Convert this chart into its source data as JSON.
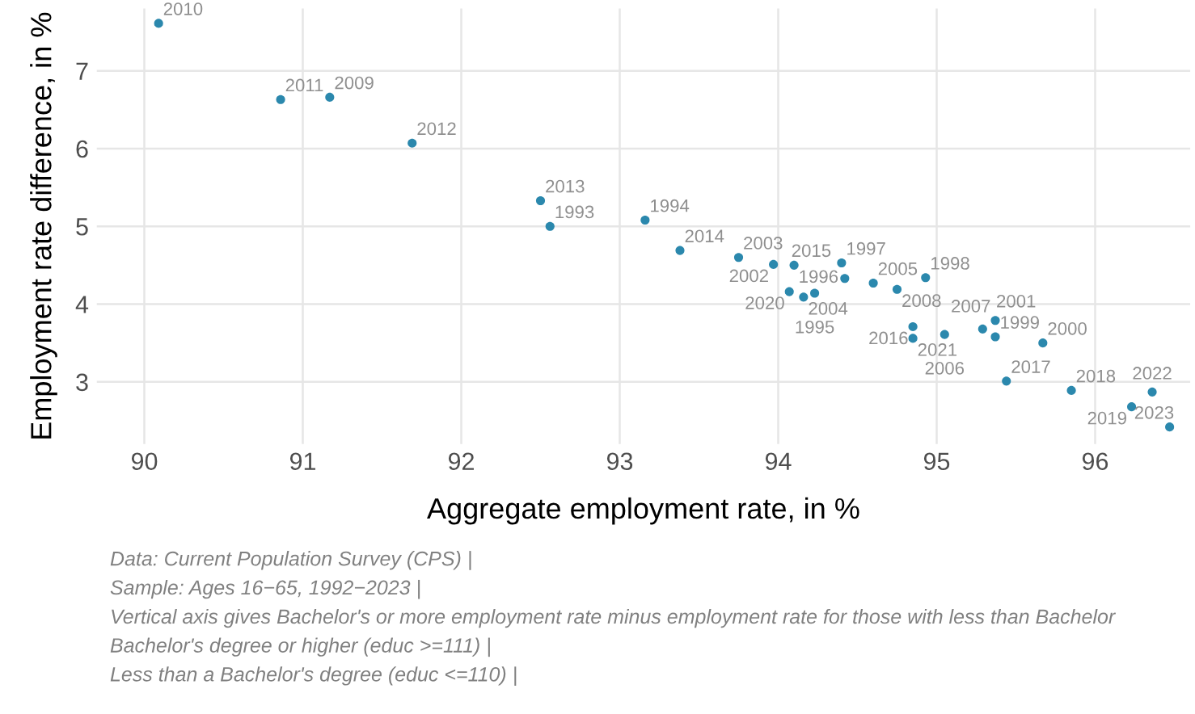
{
  "chart_data": {
    "type": "scatter",
    "xlabel": "Aggregate employment rate, in %",
    "ylabel": "Employment rate difference, in %",
    "x": [
      90.09,
      90.86,
      91.17,
      91.69,
      92.5,
      92.56,
      93.16,
      93.38,
      93.75,
      93.97,
      94.1,
      94.4,
      94.42,
      94.6,
      94.75,
      94.93,
      94.07,
      94.16,
      94.23,
      94.85,
      94.85,
      95.05,
      95.29,
      95.37,
      95.37,
      95.67,
      95.44,
      95.85,
      96.23,
      96.36,
      96.47
    ],
    "values": [
      7.61,
      6.63,
      6.66,
      6.07,
      5.33,
      5.0,
      5.08,
      4.69,
      4.6,
      4.51,
      4.5,
      4.53,
      4.33,
      4.27,
      4.19,
      4.34,
      4.16,
      4.09,
      4.14,
      3.71,
      3.56,
      3.61,
      3.68,
      3.79,
      3.58,
      3.5,
      3.01,
      2.89,
      2.68,
      2.87,
      2.42
    ],
    "color": "#2b88ad",
    "marker": "circle",
    "grid": true,
    "xlim": [
      89.7,
      96.6
    ],
    "ylim": [
      2.2,
      7.8
    ],
    "xticks": [
      90,
      91,
      92,
      93,
      94,
      95,
      96
    ],
    "yticks": [
      3,
      4,
      5,
      6,
      7
    ],
    "annotations": [
      {
        "text": "2010",
        "x": 90.09,
        "y": 7.61
      },
      {
        "text": "2011",
        "x": 90.86,
        "y": 6.63
      },
      {
        "text": "2009",
        "x": 91.17,
        "y": 6.66
      },
      {
        "text": "2012",
        "x": 91.69,
        "y": 6.07
      },
      {
        "text": "2013",
        "x": 92.5,
        "y": 5.33
      },
      {
        "text": "1993",
        "x": 92.56,
        "y": 5.0
      },
      {
        "text": "1994",
        "x": 93.16,
        "y": 5.08
      },
      {
        "text": "2014",
        "x": 93.38,
        "y": 4.69
      },
      {
        "text": "2003",
        "x": 93.75,
        "y": 4.6
      },
      {
        "text": "2002",
        "x": 93.97,
        "y": 4.51
      },
      {
        "text": "1996",
        "x": 94.1,
        "y": 4.5
      },
      {
        "text": "1997",
        "x": 94.4,
        "y": 4.53
      },
      {
        "text": "2015",
        "x": 94.42,
        "y": 4.33
      },
      {
        "text": "2005",
        "x": 94.6,
        "y": 4.27
      },
      {
        "text": "2008",
        "x": 94.75,
        "y": 4.19
      },
      {
        "text": "1998",
        "x": 94.93,
        "y": 4.34
      },
      {
        "text": "2020",
        "x": 94.07,
        "y": 4.16
      },
      {
        "text": "2004",
        "x": 94.16,
        "y": 4.09
      },
      {
        "text": "1995",
        "x": 94.23,
        "y": 4.14
      },
      {
        "text": "2016",
        "x": 94.85,
        "y": 3.71
      },
      {
        "text": "2021",
        "x": 94.85,
        "y": 3.56
      },
      {
        "text": "2006",
        "x": 95.05,
        "y": 3.61
      },
      {
        "text": "2001",
        "x": 95.29,
        "y": 3.68
      },
      {
        "text": "2007",
        "x": 95.37,
        "y": 3.79
      },
      {
        "text": "1999",
        "x": 95.37,
        "y": 3.58
      },
      {
        "text": "2000",
        "x": 95.67,
        "y": 3.5
      },
      {
        "text": "2017",
        "x": 95.44,
        "y": 3.01
      },
      {
        "text": "2018",
        "x": 95.85,
        "y": 2.89
      },
      {
        "text": "2019",
        "x": 96.23,
        "y": 2.68
      },
      {
        "text": "2022",
        "x": 96.36,
        "y": 2.87
      },
      {
        "text": "2023",
        "x": 96.47,
        "y": 2.42
      },
      "Data: Current Population Survey (CPS) |",
      "Sample: Ages 16−65, 1992−2023 |",
      "Vertical axis gives Bachelor's or more employment rate minus employment rate for those with less than Bachelor",
      "Bachelor's degree or higher (educ >=111) |",
      "Less than a Bachelor's degree (educ <=110) |"
    ]
  }
}
